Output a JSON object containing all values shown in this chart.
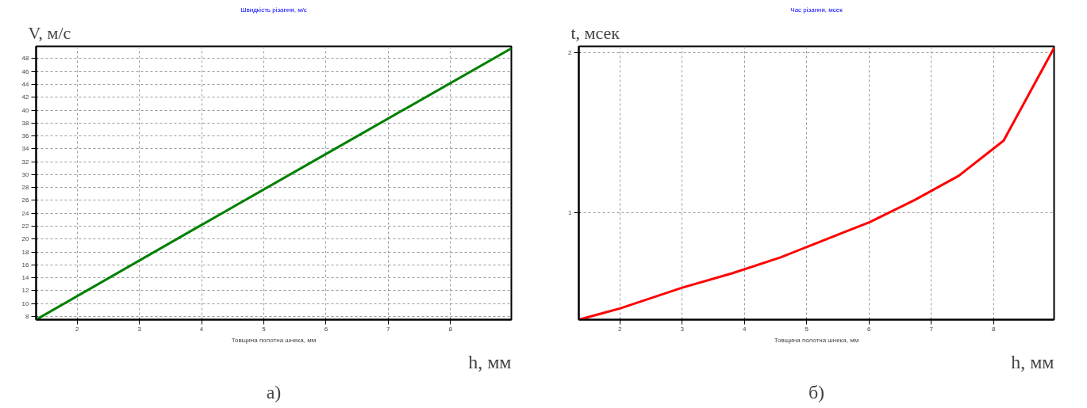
{
  "chart_data": [
    {
      "type": "line",
      "title": "Швидкість різання, м/с",
      "xlabel": "Товщина полотна шнека, мм",
      "ylabel": "V, м/с",
      "annotations": [
        "h, мм",
        "а)"
      ],
      "x": [
        1.34,
        4,
        6,
        8.98
      ],
      "series": [
        {
          "color": "#008000",
          "values": [
            7.5,
            22.2,
            33.2,
            49.6
          ]
        }
      ],
      "xlim": [
        1.34,
        8.98
      ],
      "ylim": [
        7.5,
        49.9
      ],
      "xticks": [
        2,
        3,
        4,
        5,
        6,
        7,
        8
      ],
      "yticks": [
        8,
        10,
        12,
        14,
        16,
        18,
        20,
        22,
        24,
        26,
        28,
        30,
        32,
        34,
        36,
        38,
        40,
        42,
        44,
        46,
        48
      ],
      "grid": true,
      "line_style": "solid",
      "marker": "none"
    },
    {
      "type": "line",
      "title": "Час різання, мсек",
      "xlabel": "Товщина полотна шнека, мм",
      "ylabel": "t, мсек",
      "annotations": [
        "h, мм",
        "б)"
      ],
      "x": [
        1.34,
        2.0,
        3.0,
        3.8,
        4.58,
        5.55,
        6.01,
        6.74,
        7.44,
        8.16,
        8.97
      ],
      "series": [
        {
          "color": "#ff0000",
          "values": [
            0.33,
            0.4,
            0.53,
            0.62,
            0.72,
            0.87,
            0.94,
            1.08,
            1.23,
            1.45,
            2.03
          ]
        }
      ],
      "xlim": [
        1.34,
        8.97
      ],
      "ylim": [
        0.33,
        2.04
      ],
      "xticks": [
        2,
        3,
        4,
        5,
        6,
        7,
        8
      ],
      "yticks": [
        1,
        2
      ],
      "grid": true,
      "line_style": "solid",
      "marker": "none"
    }
  ]
}
